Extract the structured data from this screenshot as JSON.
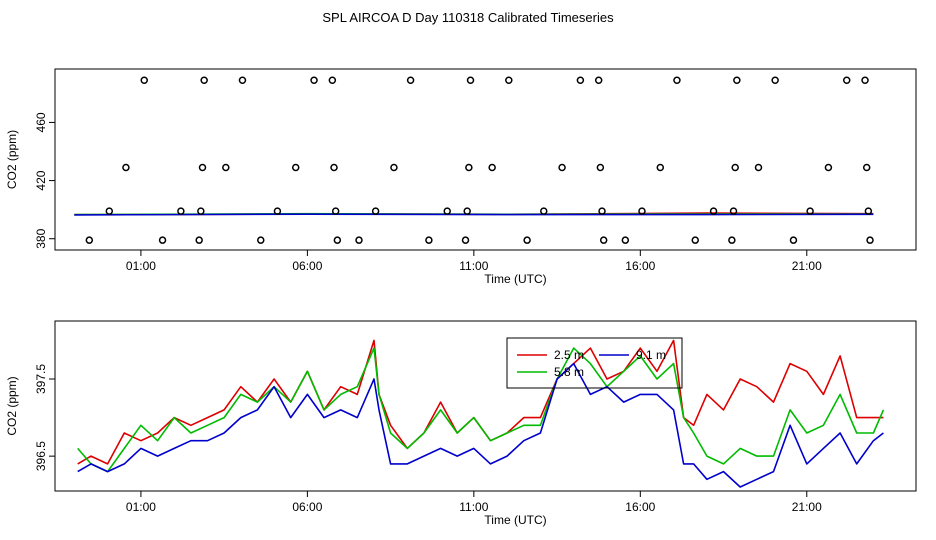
{
  "title": "SPL AIRCOA D  Day 110318  Calibrated Timeseries",
  "colors": {
    "red": "#dd0000",
    "green": "#00bb00",
    "blue": "#0000cc",
    "axis": "#000000"
  },
  "chart_data": [
    {
      "type": "scatter",
      "title": "",
      "xlabel": "Time (UTC)",
      "ylabel": "CO2 (ppm)",
      "xlim": [
        -1.1,
        23.8
      ],
      "ylim": [
        375,
        494
      ],
      "xticks": [
        1,
        6,
        11,
        16,
        21
      ],
      "xtick_labels": [
        "01:00",
        "06:00",
        "11:00",
        "16:00",
        "21:00"
      ],
      "yticks": [
        380,
        420,
        460
      ],
      "ytick_labels": [
        "380",
        "420",
        "460"
      ],
      "points": [
        {
          "x": -0.55,
          "y": 379
        },
        {
          "x": 0.05,
          "y": 399
        },
        {
          "x": 0.55,
          "y": 429
        },
        {
          "x": 1.1,
          "y": 489
        },
        {
          "x": 1.65,
          "y": 379
        },
        {
          "x": 2.2,
          "y": 399
        },
        {
          "x": 2.75,
          "y": 379
        },
        {
          "x": 2.8,
          "y": 399
        },
        {
          "x": 2.85,
          "y": 429
        },
        {
          "x": 2.9,
          "y": 489
        },
        {
          "x": 3.55,
          "y": 429
        },
        {
          "x": 4.05,
          "y": 489
        },
        {
          "x": 4.6,
          "y": 379
        },
        {
          "x": 5.1,
          "y": 399
        },
        {
          "x": 5.65,
          "y": 429
        },
        {
          "x": 6.2,
          "y": 489
        },
        {
          "x": 6.75,
          "y": 489
        },
        {
          "x": 6.8,
          "y": 429
        },
        {
          "x": 6.85,
          "y": 399
        },
        {
          "x": 6.9,
          "y": 379
        },
        {
          "x": 7.55,
          "y": 379
        },
        {
          "x": 8.05,
          "y": 399
        },
        {
          "x": 8.6,
          "y": 429
        },
        {
          "x": 9.1,
          "y": 489
        },
        {
          "x": 9.65,
          "y": 379
        },
        {
          "x": 10.2,
          "y": 399
        },
        {
          "x": 10.75,
          "y": 379
        },
        {
          "x": 10.8,
          "y": 399
        },
        {
          "x": 10.85,
          "y": 429
        },
        {
          "x": 10.9,
          "y": 489
        },
        {
          "x": 11.55,
          "y": 429
        },
        {
          "x": 12.05,
          "y": 489
        },
        {
          "x": 12.6,
          "y": 379
        },
        {
          "x": 13.1,
          "y": 399
        },
        {
          "x": 13.65,
          "y": 429
        },
        {
          "x": 14.2,
          "y": 489
        },
        {
          "x": 14.75,
          "y": 489
        },
        {
          "x": 14.8,
          "y": 429
        },
        {
          "x": 14.85,
          "y": 399
        },
        {
          "x": 14.9,
          "y": 379
        },
        {
          "x": 15.55,
          "y": 379
        },
        {
          "x": 16.05,
          "y": 399
        },
        {
          "x": 16.6,
          "y": 429
        },
        {
          "x": 17.1,
          "y": 489
        },
        {
          "x": 17.65,
          "y": 379
        },
        {
          "x": 18.2,
          "y": 399
        },
        {
          "x": 18.75,
          "y": 379
        },
        {
          "x": 18.8,
          "y": 399
        },
        {
          "x": 18.85,
          "y": 429
        },
        {
          "x": 18.9,
          "y": 489
        },
        {
          "x": 19.55,
          "y": 429
        },
        {
          "x": 20.05,
          "y": 489
        },
        {
          "x": 20.6,
          "y": 379
        },
        {
          "x": 21.1,
          "y": 399
        },
        {
          "x": 21.65,
          "y": 429
        },
        {
          "x": 22.2,
          "y": 489
        },
        {
          "x": 22.75,
          "y": 489
        },
        {
          "x": 22.8,
          "y": 429
        },
        {
          "x": 22.85,
          "y": 399
        },
        {
          "x": 22.9,
          "y": 379
        }
      ],
      "series": [
        {
          "name": "2.5 m",
          "color": "#dd0000",
          "x": [
            -1,
            6,
            12,
            18,
            23
          ],
          "values": [
            396.5,
            397.0,
            396.8,
            397.6,
            397.2
          ]
        },
        {
          "name": "5.8 m",
          "color": "#00bb00",
          "x": [
            -1,
            6,
            12,
            18,
            23
          ],
          "values": [
            396.6,
            397.2,
            396.8,
            397.0,
            397.0
          ]
        },
        {
          "name": "9.1 m",
          "color": "#0000cc",
          "x": [
            -1,
            6,
            12,
            18,
            23
          ],
          "values": [
            396.4,
            396.9,
            396.6,
            396.6,
            396.8
          ]
        }
      ]
    },
    {
      "type": "line",
      "title": "",
      "xlabel": "Time (UTC)",
      "ylabel": "CO2 (ppm)",
      "xlim": [
        -1.1,
        23.8
      ],
      "ylim": [
        396.1,
        398.2
      ],
      "xticks": [
        1,
        6,
        11,
        16,
        21
      ],
      "xtick_labels": [
        "01:00",
        "06:00",
        "11:00",
        "16:00",
        "21:00"
      ],
      "yticks": [
        396.5,
        397.5
      ],
      "ytick_labels": [
        "396.5",
        "397.5"
      ],
      "legend": [
        "2.5 m",
        "5.8 m",
        "9.1 m"
      ],
      "legend_position": "top-center",
      "series": [
        {
          "name": "2.5 m",
          "color": "#dd0000",
          "x": [
            -0.9,
            -0.5,
            0,
            0.5,
            1,
            1.5,
            2,
            2.5,
            3,
            3.5,
            4,
            4.5,
            5,
            5.5,
            6,
            6.5,
            7,
            7.5,
            8,
            8.15,
            8.5,
            9,
            9.5,
            10,
            10.5,
            11,
            11.5,
            12,
            12.5,
            13,
            13.5,
            14,
            14.5,
            15,
            15.5,
            16,
            16.5,
            17,
            17.3,
            17.6,
            18,
            18.5,
            19,
            19.5,
            20,
            20.5,
            21,
            21.5,
            22,
            22.5,
            23,
            23.3
          ],
          "values": [
            396.4,
            396.5,
            396.4,
            396.8,
            396.7,
            396.8,
            397.0,
            396.9,
            397.0,
            397.1,
            397.4,
            397.2,
            397.5,
            397.2,
            397.6,
            397.1,
            397.4,
            397.3,
            398.0,
            397.3,
            396.9,
            396.6,
            396.8,
            397.2,
            396.8,
            397.0,
            396.7,
            396.8,
            397.0,
            397.0,
            397.5,
            397.7,
            397.9,
            397.5,
            397.6,
            397.9,
            397.6,
            398.0,
            397.0,
            396.9,
            397.3,
            397.1,
            397.5,
            397.4,
            397.2,
            397.7,
            397.6,
            397.3,
            397.8,
            397.0,
            397.0,
            397.0
          ]
        },
        {
          "name": "5.8 m",
          "color": "#00bb00",
          "x": [
            -0.9,
            -0.5,
            0,
            0.5,
            1,
            1.5,
            2,
            2.5,
            3,
            3.5,
            4,
            4.5,
            5,
            5.5,
            6,
            6.5,
            7,
            7.5,
            8,
            8.15,
            8.5,
            9,
            9.5,
            10,
            10.5,
            11,
            11.5,
            12,
            12.5,
            13,
            13.5,
            14,
            14.5,
            15,
            15.5,
            16,
            16.5,
            17,
            17.3,
            17.6,
            18,
            18.5,
            19,
            19.5,
            20,
            20.5,
            21,
            21.5,
            22,
            22.5,
            23,
            23.3
          ],
          "values": [
            396.6,
            396.4,
            396.3,
            396.6,
            396.9,
            396.7,
            397.0,
            396.8,
            396.9,
            397.0,
            397.3,
            397.2,
            397.4,
            397.2,
            397.6,
            397.1,
            397.3,
            397.4,
            397.9,
            397.3,
            396.8,
            396.6,
            396.8,
            397.1,
            396.8,
            397.0,
            396.7,
            396.8,
            396.9,
            396.9,
            397.5,
            397.9,
            397.7,
            397.4,
            397.6,
            397.8,
            397.5,
            397.7,
            397.0,
            396.8,
            396.5,
            396.4,
            396.6,
            396.5,
            396.5,
            397.1,
            396.8,
            396.9,
            397.3,
            396.8,
            396.8,
            397.1
          ]
        },
        {
          "name": "9.1 m",
          "color": "#0000cc",
          "x": [
            -0.9,
            -0.5,
            0,
            0.5,
            1,
            1.5,
            2,
            2.5,
            3,
            3.5,
            4,
            4.5,
            5,
            5.5,
            6,
            6.5,
            7,
            7.5,
            8,
            8.15,
            8.5,
            9,
            9.5,
            10,
            10.5,
            11,
            11.5,
            12,
            12.5,
            13,
            13.5,
            14,
            14.5,
            15,
            15.5,
            16,
            16.5,
            17,
            17.3,
            17.6,
            18,
            18.5,
            19,
            19.5,
            20,
            20.5,
            21,
            21.5,
            22,
            22.5,
            23,
            23.3
          ],
          "values": [
            396.3,
            396.4,
            396.3,
            396.4,
            396.6,
            396.5,
            396.6,
            396.7,
            396.7,
            396.8,
            397.0,
            397.1,
            397.4,
            397.0,
            397.3,
            397.0,
            397.1,
            397.0,
            397.5,
            397.1,
            396.4,
            396.4,
            396.5,
            396.6,
            396.5,
            396.6,
            396.4,
            396.5,
            396.7,
            396.8,
            397.5,
            397.7,
            397.3,
            397.4,
            397.2,
            397.3,
            397.3,
            397.1,
            396.4,
            396.4,
            396.2,
            396.3,
            396.1,
            396.2,
            396.3,
            396.9,
            396.4,
            396.6,
            396.8,
            396.4,
            396.7,
            396.8
          ]
        }
      ]
    }
  ]
}
